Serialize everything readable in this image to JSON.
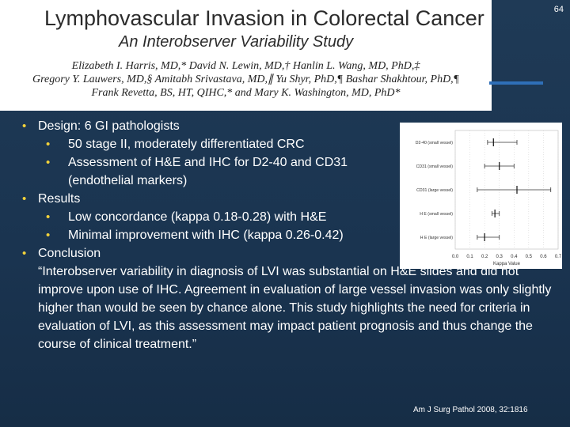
{
  "slide_number": "64",
  "header": {
    "title": "Lymphovascular Invasion in Colorectal Cancer",
    "subtitle": "An Interobserver Variability Study",
    "authors": [
      "Elizabeth I. Harris, MD,* David N. Lewin, MD,† Hanlin L. Wang, MD, PhD,‡",
      "Gregory Y. Lauwers, MD,§ Amitabh Srivastava, MD,∥ Yu Shyr, PhD,¶ Bashar Shakhtour, PhD,¶",
      "Frank Revetta, BS, HT, QIHC,* and Mary K. Washington, MD, PhD*"
    ]
  },
  "bullets": {
    "design": "Design: 6 GI pathologists",
    "design_sub": [
      "50 stage II, moderately differentiated CRC",
      "Assessment of H&E and IHC for D2-40 and CD31 (endothelial markers)"
    ],
    "results": "Results",
    "results_sub": [
      "Low concordance (kappa 0.18-0.28) with H&E",
      "Minimal improvement with IHC (kappa 0.26-0.42)"
    ],
    "conclusion": "Conclusion",
    "quote": "“Interobserver variability in diagnosis of LVI was substantial on H&E slides and did not improve upon use of IHC. Agreement in evaluation of large vessel invasion was only slightly higher than would be seen by chance alone. This study highlights the need for criteria in evaluation of LVI, as this assessment may impact patient prognosis and thus change the course of clinical treatment.”"
  },
  "forest_plot": {
    "rows": [
      {
        "label": "D2-40 (small vessel)",
        "point": 0.26,
        "low": 0.22,
        "high": 0.42
      },
      {
        "label": "CD31 (small vessel)",
        "point": 0.3,
        "low": 0.2,
        "high": 0.4
      },
      {
        "label": "CD31 (large vessel)",
        "point": 0.42,
        "low": 0.15,
        "high": 0.65
      },
      {
        "label": "H E (small vessel)",
        "point": 0.27,
        "low": 0.25,
        "high": 0.3
      },
      {
        "label": "H E (large vessel)",
        "point": 0.2,
        "low": 0.15,
        "high": 0.3
      }
    ],
    "ticks": [
      "0.0",
      "0.1",
      "0.2",
      "0.3",
      "0.4",
      "0.5",
      "0.6",
      "0.7"
    ],
    "xlabel": "Kappa Value"
  },
  "citation": "Am J Surg Pathol 2008, 32:1816"
}
